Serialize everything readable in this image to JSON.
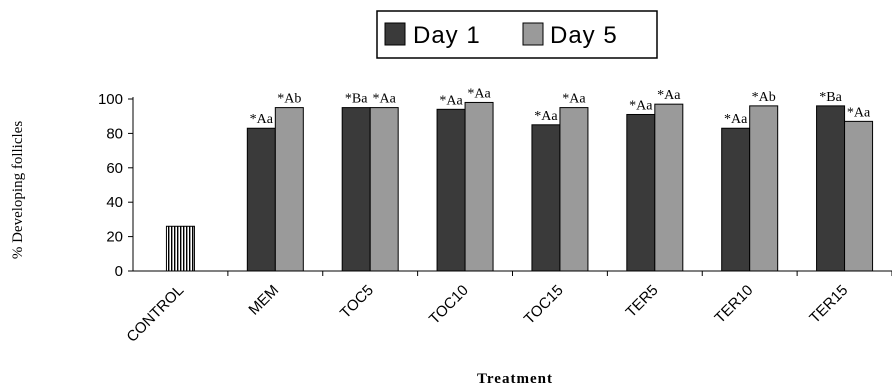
{
  "chart_data": {
    "type": "bar",
    "xlabel": "Treatment",
    "ylabel": "% Developing follicles",
    "ylim": [
      0,
      100
    ],
    "yticks": [
      0,
      20,
      40,
      60,
      80,
      100
    ],
    "categories": [
      "CONTROL",
      "MEM",
      "TOC5",
      "TOC10",
      "TOC15",
      "TER5",
      "TER10",
      "TER15"
    ],
    "control_value": 26,
    "legend_position": "top-center",
    "series": [
      {
        "name": "Day 1",
        "color": "#3a3a3a",
        "values": [
          null,
          83,
          95,
          94,
          85,
          91,
          83,
          96
        ],
        "annotations": [
          "",
          "*Aa",
          "*Ba",
          "*Aa",
          "*Aa",
          "*Aa",
          "*Aa",
          "*Ba"
        ]
      },
      {
        "name": "Day 5",
        "color": "#9a9a9a",
        "values": [
          null,
          95,
          95,
          98,
          95,
          97,
          96,
          87
        ],
        "annotations": [
          "",
          "*Ab",
          "*Aa",
          "*Aa",
          "*Aa",
          "*Aa",
          "*Ab",
          "*Aa"
        ]
      }
    ]
  }
}
